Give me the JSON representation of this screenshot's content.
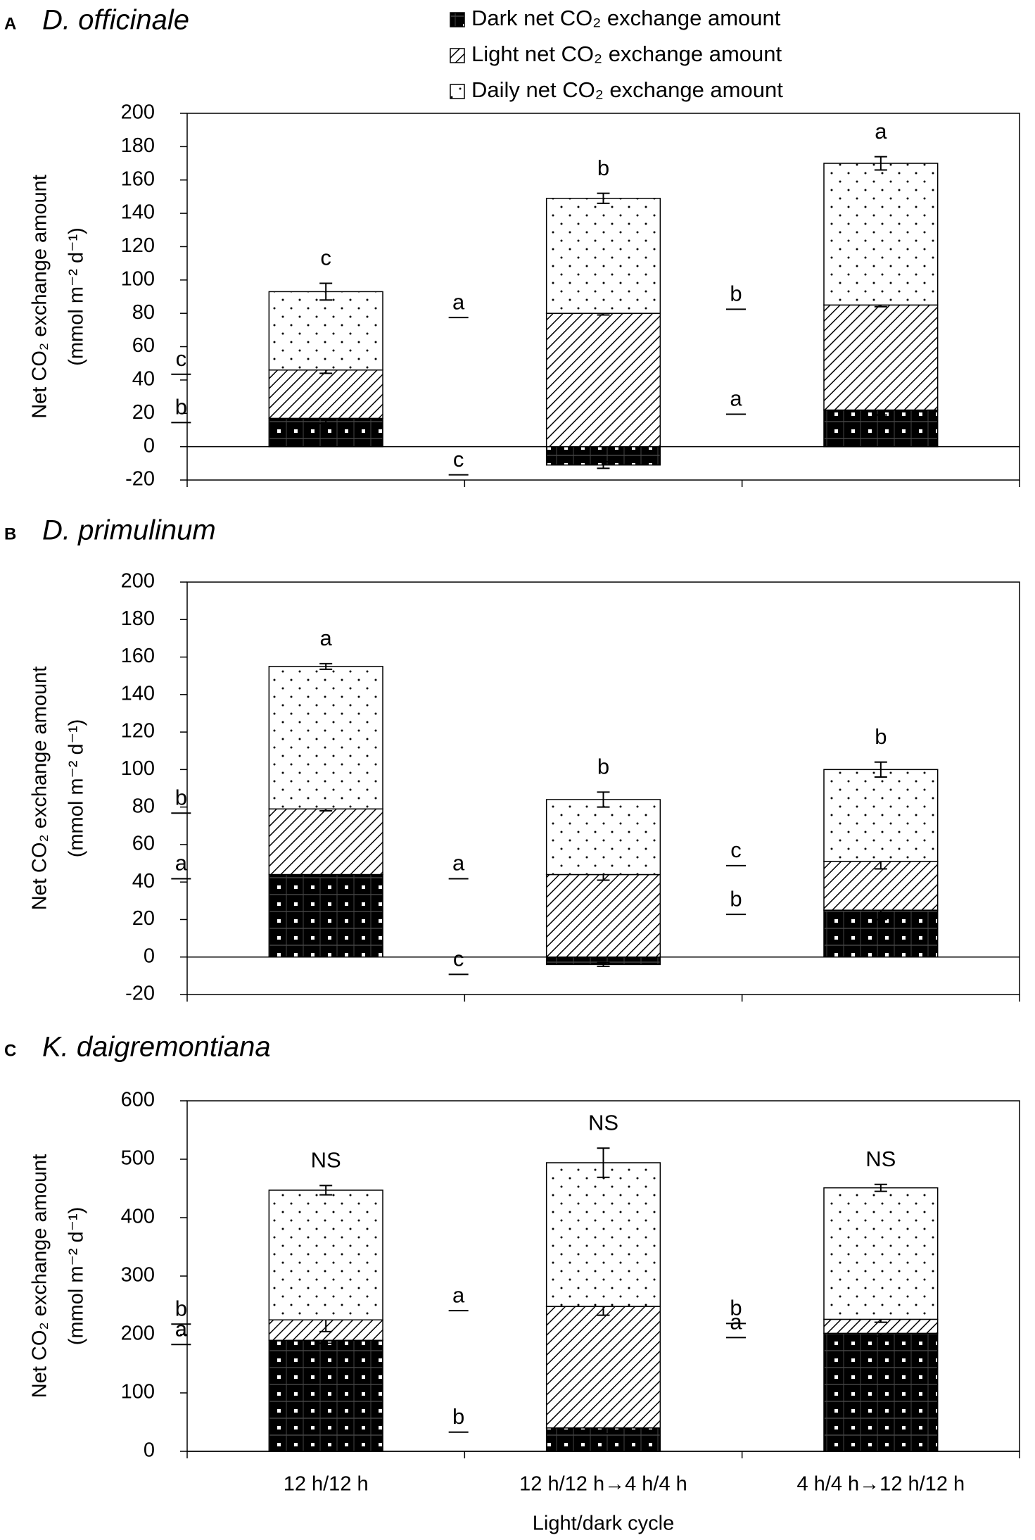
{
  "chart_data": [
    {
      "type": "bar",
      "panel": "A",
      "title": "D. officinale",
      "ylabel": [
        "Net CO₂ exchange amount",
        "(mmol m⁻² d⁻¹)"
      ],
      "ylim": [
        -20,
        200
      ],
      "yticks": [
        -20,
        0,
        20,
        40,
        60,
        80,
        100,
        120,
        140,
        160,
        180,
        200
      ],
      "categories": [
        null,
        null,
        null
      ],
      "series": [
        {
          "name": "Dark net CO₂ exchange amount",
          "values": [
            17,
            -11,
            22
          ],
          "errors": [
            3,
            2,
            3
          ],
          "labels": [
            "b",
            "c",
            "a"
          ]
        },
        {
          "name": "Light net CO₂ exchange amount",
          "values": [
            29,
            80,
            63
          ],
          "errors": [
            2,
            1,
            1
          ],
          "labels": [
            "c",
            "a",
            "b"
          ]
        },
        {
          "name": "Daily net CO₂ exchange amount",
          "values": [
            47,
            69,
            85
          ],
          "errors": [
            5,
            3,
            4
          ],
          "labels": [
            "c",
            "b",
            "a"
          ]
        }
      ]
    },
    {
      "type": "bar",
      "panel": "B",
      "title": "D. primulinum",
      "ylabel": [
        "Net CO₂ exchange amount",
        "(mmol m⁻² d⁻¹)"
      ],
      "ylim": [
        -20,
        200
      ],
      "yticks": [
        -20,
        0,
        20,
        40,
        60,
        80,
        100,
        120,
        140,
        160,
        180,
        200
      ],
      "categories": [
        null,
        null,
        null
      ],
      "series": [
        {
          "values": [
            44,
            -4,
            25
          ],
          "errors": [
            1,
            1,
            5
          ],
          "labels": [
            "a",
            "c",
            "b"
          ]
        },
        {
          "values": [
            35,
            44,
            26
          ],
          "errors": [
            1,
            3,
            4
          ],
          "labels": [
            "b",
            "a",
            "c"
          ]
        },
        {
          "values": [
            76,
            40,
            49
          ],
          "errors": [
            1.5,
            4,
            4
          ],
          "labels": [
            "a",
            "b",
            "b"
          ]
        }
      ]
    },
    {
      "type": "bar",
      "panel": "C",
      "title": "K. daigremontiana",
      "ylabel": [
        "Net CO₂ exchange amount",
        "(mmol m⁻² d⁻¹)"
      ],
      "ylim": [
        0,
        600
      ],
      "yticks": [
        0,
        100,
        200,
        300,
        400,
        500,
        600
      ],
      "categories": [
        "12 h/12 h",
        "12 h/12 h→4 h/4 h",
        "4 h/4 h→12 h/12 h"
      ],
      "xlabel": "Light/dark cycle",
      "series": [
        {
          "values": [
            190,
            40,
            202
          ],
          "errors": [
            5,
            10,
            5
          ],
          "labels": [
            "a",
            "b",
            "a"
          ]
        },
        {
          "values": [
            35,
            208,
            24
          ],
          "errors": [
            20,
            15,
            5
          ],
          "labels": [
            "b",
            "a",
            "b"
          ]
        },
        {
          "values": [
            222,
            246,
            225
          ],
          "errors": [
            8,
            25,
            6
          ],
          "labels": [
            "NS",
            "NS",
            "NS"
          ]
        }
      ]
    }
  ]
}
